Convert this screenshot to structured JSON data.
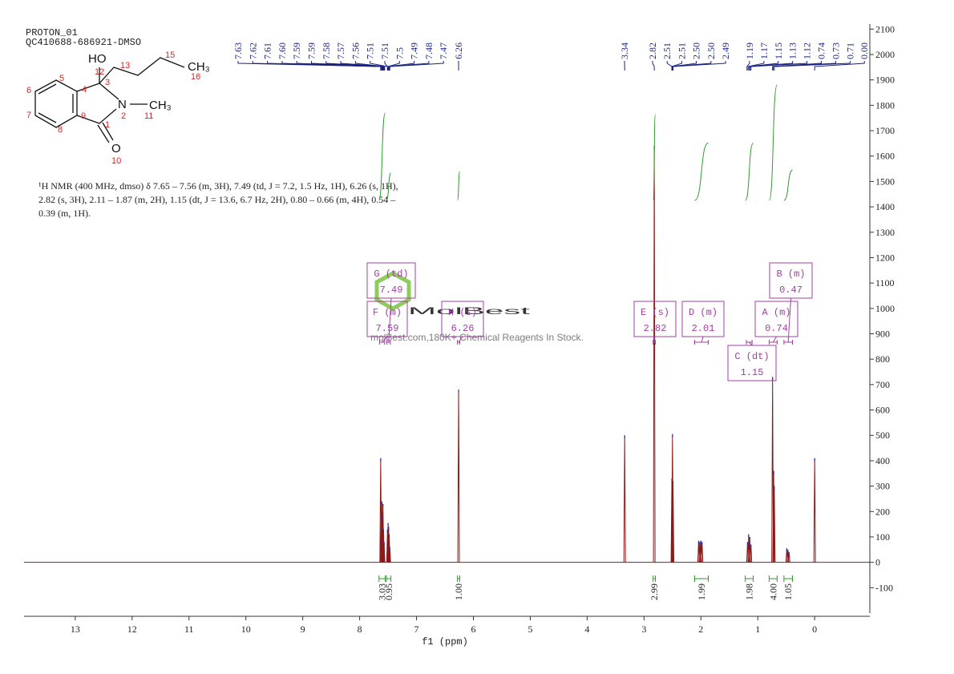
{
  "header": {
    "title": "PROTON_01",
    "sample": "QC410688-686921-DMSO"
  },
  "description": [
    "¹H NMR (400 MHz, dmso) δ 7.65 – 7.56 (m, 3H), 7.49 (td, J = 7.2, 1.5 Hz, 1H), 6.26 (s, 1H),",
    "2.82 (s, 3H), 2.11 – 1.87 (m, 2H), 1.15 (dt, J = 13.6, 6.7 Hz, 2H), 0.80 – 0.66 (m, 4H), 0.54 –",
    "0.39 (m, 1H)."
  ],
  "structure": {
    "labels": [
      "HO",
      "12",
      "13",
      "15",
      "CH₃",
      "16",
      "5",
      "3",
      "4",
      "6",
      "N",
      "CH₃",
      "7",
      "9",
      "2",
      "11",
      "1",
      "8",
      "O",
      "10"
    ]
  },
  "watermark": {
    "brand": "MolBest",
    "tagline": "molBest.com,180K+ Chemical Reagents In Stock."
  },
  "chart_data": {
    "type": "spectrum",
    "x_label": "f1 (ppm)",
    "color": "#8b1a1a",
    "xlim": [
      13.9,
      -0.97
    ],
    "xticks": [
      13,
      12,
      11,
      10,
      9,
      8,
      7,
      6,
      5,
      4,
      3,
      2,
      1,
      0
    ],
    "ylim": [
      -200,
      2120
    ],
    "yticks": [
      -100,
      0,
      100,
      200,
      300,
      400,
      500,
      600,
      700,
      800,
      900,
      1000,
      1100,
      1200,
      1300,
      1400,
      1500,
      1600,
      1700,
      1800,
      1900,
      2000,
      2100
    ],
    "x": [
      7.63,
      7.62,
      7.61,
      7.6,
      7.59,
      7.58,
      7.57,
      7.51,
      7.5,
      7.49,
      7.48,
      7.47,
      6.26,
      3.34,
      2.82,
      2.51,
      2.5,
      2.49,
      2.04,
      2.02,
      2.0,
      1.98,
      1.18,
      1.16,
      1.14,
      1.12,
      0.74,
      0.72,
      0.71,
      0.49,
      0.47,
      0.45,
      0.0
    ],
    "values": [
      410,
      200,
      240,
      180,
      230,
      130,
      80,
      130,
      155,
      140,
      110,
      60,
      680,
      500,
      1640,
      330,
      505,
      320,
      85,
      80,
      85,
      80,
      80,
      110,
      100,
      70,
      730,
      360,
      300,
      55,
      50,
      40,
      410
    ],
    "peak_labels": [
      7.63,
      7.62,
      7.61,
      {
        "value": 7.6,
        "label": "7.60"
      },
      7.59,
      7.59,
      7.58,
      7.57,
      7.56,
      7.51,
      7.51,
      7.5,
      7.49,
      7.48,
      7.47,
      6.26,
      3.34,
      2.82,
      2.51,
      2.51,
      {
        "value": 2.5,
        "label": "2.50"
      },
      {
        "value": 2.5,
        "label": "2.50"
      },
      2.49,
      1.19,
      1.17,
      1.15,
      1.13,
      1.12,
      0.74,
      0.73,
      0.71,
      {
        "value": 0,
        "label": "0.00"
      }
    ],
    "integrals": {
      "color": "#2e9b2e",
      "ranges": [
        [
          7.66,
          7.55
        ],
        [
          7.53,
          7.45
        ],
        [
          6.28,
          6.24
        ],
        [
          2.84,
          2.8
        ],
        [
          2.11,
          1.87
        ],
        [
          1.22,
          1.08
        ],
        [
          0.8,
          0.66
        ],
        [
          0.54,
          0.39
        ]
      ],
      "values": [
        3.03,
        0.95,
        1.0,
        2.99,
        1.99,
        1.98,
        4.0,
        1.05
      ],
      "value_labels": [
        "3.03",
        "0.95",
        "1.00",
        "2.99",
        "1.99",
        "1.98",
        "4.00",
        "1.05"
      ]
    },
    "multiplets": {
      "color": "#a040a0",
      "names": [
        "F (m)",
        "G (td)",
        "H (s)",
        "E (s)",
        "D (m)",
        "C (dt)",
        "A (m)",
        "B (m)"
      ],
      "shifts": [
        7.59,
        7.49,
        6.26,
        2.82,
        2.01,
        1.15,
        0.74,
        0.47
      ],
      "ranges": [
        [
          7.65,
          7.56
        ],
        [
          7.52,
          7.46
        ],
        [
          6.28,
          6.24
        ],
        [
          2.84,
          2.8
        ],
        [
          2.11,
          1.87
        ],
        [
          1.2,
          1.1
        ],
        [
          0.8,
          0.66
        ],
        [
          0.54,
          0.39
        ]
      ]
    }
  }
}
